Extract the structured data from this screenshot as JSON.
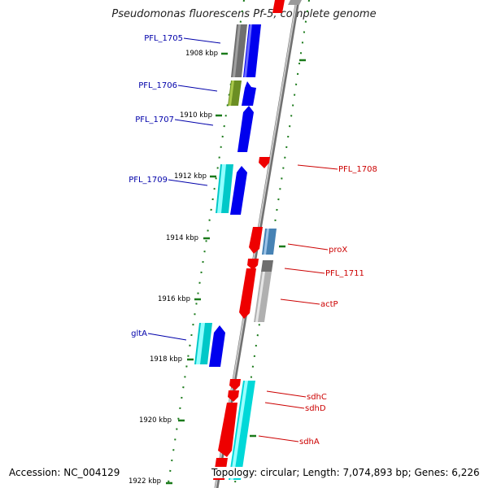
{
  "title": "Pseudomonas fluorescens Pf-5, complete genome",
  "footer": {
    "accession": "Accession: NC_004129",
    "summary": "Topology: circular; Length: 7,074,893 bp; Genes: 6,226"
  },
  "colors": {
    "backbone": "#909090",
    "tick": "#1a7a1a",
    "forward_label": "#0000aa",
    "reverse_label": "#cc0000",
    "blue": "#0000ee",
    "red": "#ee0000",
    "cyan": "#00d8d8",
    "gray": "#7a7a7a",
    "olive": "#6b8e23",
    "steelblue": "#4682b4",
    "lightgray": "#b0b0b0"
  },
  "scale_labels": [
    "1908 kbp",
    "1910 kbp",
    "1912 kbp",
    "1914 kbp",
    "1916 kbp",
    "1918 kbp",
    "1920 kbp",
    "1922 kbp"
  ],
  "forward_gene_labels": [
    "PFL_1705",
    "PFL_1706",
    "PFL_1707",
    "PFL_1709",
    "gltA"
  ],
  "reverse_gene_labels": [
    "PFL_1708",
    "proX",
    "PFL_1711",
    "actP",
    "sdhC",
    "sdhD",
    "sdhA"
  ]
}
